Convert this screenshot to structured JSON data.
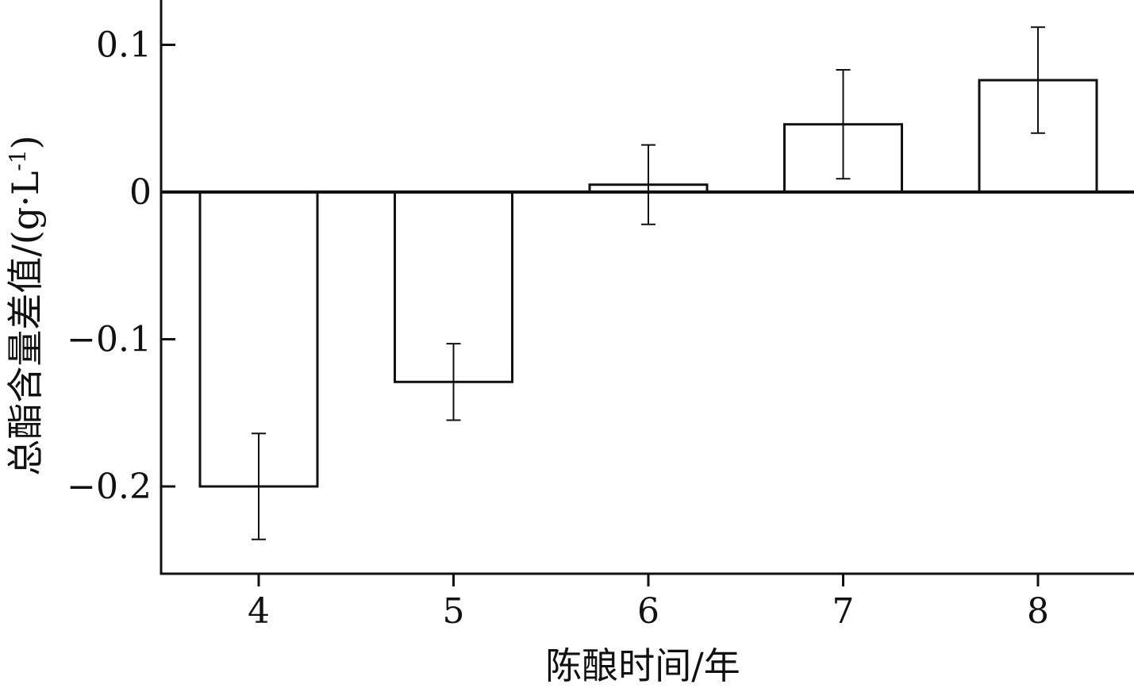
{
  "chart_data": {
    "type": "bar",
    "categories": [
      "4",
      "5",
      "6",
      "7",
      "8"
    ],
    "values": [
      -0.2,
      -0.129,
      0.005,
      0.046,
      0.076
    ],
    "errors": [
      0.036,
      0.026,
      0.027,
      0.037,
      0.036
    ],
    "xlabel": "陈酿时间/年",
    "ylabel": "总酯含量差值/(g·L",
    "ylabel_sup": "-1",
    "ylabel_tail": ")",
    "ylim": [
      -0.26,
      0.13
    ],
    "yticks": [
      0.1,
      0,
      -0.1,
      -0.2
    ],
    "ytick_labels": [
      "0.1",
      "0",
      "−0.1",
      "−0.2"
    ],
    "grid": false,
    "bar_fill": "#ffffff",
    "bar_stroke": "#111111"
  }
}
